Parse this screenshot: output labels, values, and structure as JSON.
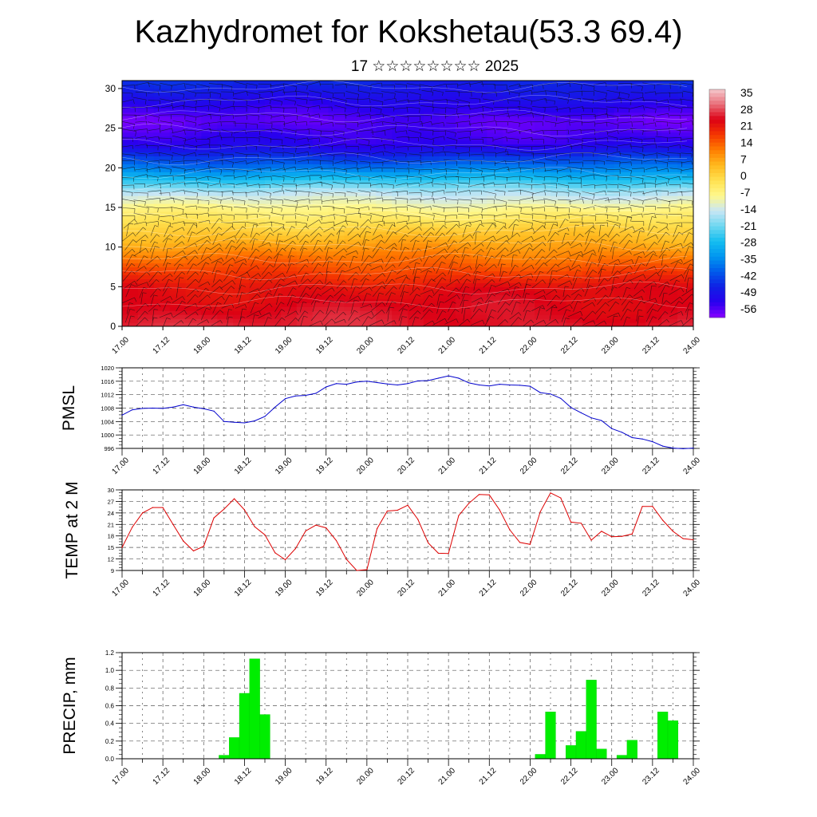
{
  "header": {
    "title": "Kazhydromet for Kokshetau(53.3 69.4)",
    "subtitle": "17 ☆☆☆☆☆☆☆☆ 2025"
  },
  "colors": {
    "pmsl_line": "#0000cc",
    "temp_line": "#dd0000",
    "precip_bar": "#00ee00",
    "precip_edge": "#00cc00"
  },
  "chart_data": [
    {
      "type": "heatmap",
      "name_id": "cross-section",
      "x_tick_labels": [
        "17.00",
        "17.12",
        "18.00",
        "18.12",
        "19.00",
        "19.12",
        "20.00",
        "20.12",
        "21.00",
        "21.12",
        "22.00",
        "22.12",
        "23.00",
        "23.12",
        "24.00"
      ],
      "y_tick_labels": [
        "0",
        "5",
        "10",
        "15",
        "20",
        "25",
        "30"
      ],
      "ylim": [
        0,
        31
      ],
      "colorbar_labels": [
        "35",
        "28",
        "21",
        "14",
        "7",
        "0",
        "-7",
        "-14",
        "-21",
        "-28",
        "-35",
        "-42",
        "-49",
        "-56"
      ],
      "colorbar_range": [
        -63,
        42
      ],
      "temperature_by_level": [
        [
          0,
          30
        ],
        [
          5,
          26
        ],
        [
          9,
          14
        ],
        [
          12,
          4
        ],
        [
          15,
          -7
        ],
        [
          17,
          -16
        ],
        [
          20,
          -38
        ],
        [
          23,
          -56
        ],
        [
          26,
          -60
        ],
        [
          31,
          -48
        ]
      ]
    },
    {
      "type": "line",
      "name_id": "pmsl",
      "ylabel": "PMSL",
      "ylim": [
        996,
        1020
      ],
      "y_tick_labels": [
        "1020",
        "1016",
        "1012",
        "1008",
        "1004",
        "1000",
        "996"
      ],
      "x_tick_labels": [
        "17.00",
        "17.12",
        "18.00",
        "18.12",
        "19.00",
        "19.12",
        "20.00",
        "20.12",
        "21.00",
        "21.12",
        "22.00",
        "22.12",
        "23.00",
        "23.12",
        "24.00"
      ],
      "x_hours": [
        0,
        3,
        6,
        9,
        12,
        15,
        18,
        21,
        24,
        27,
        30,
        33,
        36,
        39,
        42,
        45,
        48,
        51,
        54,
        57,
        60,
        63,
        66,
        69,
        72,
        75,
        78,
        81,
        84,
        87,
        90,
        93,
        96,
        99,
        102,
        105,
        108,
        111,
        114,
        117,
        120,
        123,
        126,
        129,
        132,
        135,
        138,
        141,
        144,
        147,
        150,
        153,
        156,
        159,
        162,
        165,
        168
      ],
      "values": [
        1005.9,
        1007.5,
        1007.9,
        1008.0,
        1007.9,
        1008.3,
        1009.0,
        1008.3,
        1007.8,
        1007.1,
        1004.0,
        1003.8,
        1003.6,
        1004.2,
        1005.5,
        1008.3,
        1010.8,
        1011.6,
        1011.8,
        1012.4,
        1014.3,
        1015.3,
        1015.1,
        1015.8,
        1016.0,
        1015.6,
        1015.2,
        1014.9,
        1015.3,
        1016.1,
        1016.2,
        1016.9,
        1017.6,
        1016.9,
        1015.5,
        1014.9,
        1014.6,
        1015.1,
        1014.9,
        1014.8,
        1014.5,
        1012.6,
        1012.2,
        1010.9,
        1008.2,
        1006.6,
        1005.1,
        1004.3,
        1001.9,
        1000.8,
        999.2,
        998.8,
        998.0,
        996.7,
        996.1,
        995.9,
        996.1
      ]
    },
    {
      "type": "line",
      "name_id": "temp",
      "ylabel": "TEMP at 2 M",
      "ylim": [
        9,
        30
      ],
      "y_tick_labels": [
        "30",
        "27",
        "24",
        "21",
        "18",
        "15",
        "12",
        "9"
      ],
      "x_tick_labels": [
        "17.00",
        "17.12",
        "18.00",
        "18.12",
        "19.00",
        "19.12",
        "20.00",
        "20.12",
        "21.00",
        "21.12",
        "22.00",
        "22.12",
        "23.00",
        "23.12",
        "24.00"
      ],
      "x_hours": [
        0,
        3,
        6,
        9,
        12,
        15,
        18,
        21,
        24,
        27,
        30,
        33,
        36,
        39,
        42,
        45,
        48,
        51,
        54,
        57,
        60,
        63,
        66,
        69,
        72,
        75,
        78,
        81,
        84,
        87,
        90,
        93,
        96,
        99,
        102,
        105,
        108,
        111,
        114,
        117,
        120,
        123,
        126,
        129,
        132,
        135,
        138,
        141,
        144,
        147,
        150,
        153,
        156,
        159,
        162,
        165,
        168
      ],
      "values": [
        15.0,
        20.3,
        24.0,
        25.4,
        25.4,
        21.0,
        16.7,
        14.1,
        15.3,
        22.7,
        25.0,
        27.7,
        24.8,
        20.4,
        18.3,
        13.6,
        11.8,
        14.7,
        19.3,
        20.8,
        20.1,
        16.8,
        11.9,
        9.0,
        9.2,
        19.9,
        24.5,
        24.7,
        26.0,
        22.3,
        16.2,
        13.5,
        13.4,
        23.3,
        26.5,
        28.8,
        28.7,
        24.8,
        19.6,
        16.3,
        15.8,
        24.3,
        29.2,
        27.9,
        21.6,
        21.3,
        16.9,
        19.2,
        17.8,
        17.9,
        18.5,
        25.7,
        25.7,
        22.1,
        19.2,
        17.3,
        17.0
      ]
    },
    {
      "type": "bar",
      "name_id": "precip",
      "ylabel": "PRECIP, mm",
      "ylim": [
        0,
        1.2
      ],
      "y_tick_labels": [
        "1.2",
        "1.0",
        "0.8",
        "0.6",
        "0.4",
        "0.2",
        "0.0"
      ],
      "x_tick_labels": [
        "17.00",
        "17.12",
        "18.00",
        "18.12",
        "19.00",
        "19.12",
        "20.00",
        "20.12",
        "21.00",
        "21.12",
        "22.00",
        "22.12",
        "23.00",
        "23.12",
        "24.00"
      ],
      "x_hours": [
        30,
        33,
        36,
        39,
        42,
        123,
        126,
        132,
        135,
        138,
        141,
        147,
        150,
        159,
        162
      ],
      "values": [
        0.04,
        0.24,
        0.74,
        1.13,
        0.5,
        0.05,
        0.53,
        0.15,
        0.31,
        0.89,
        0.11,
        0.04,
        0.21,
        0.53,
        0.43
      ]
    }
  ]
}
